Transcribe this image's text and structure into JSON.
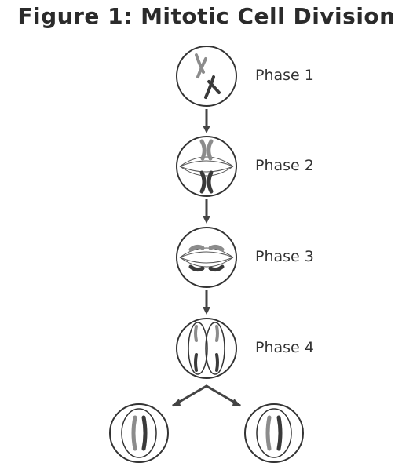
{
  "figure": {
    "title": "Figure 1: Mitotic Cell Division"
  },
  "phases": [
    {
      "label": "Phase 1"
    },
    {
      "label": "Phase 2"
    },
    {
      "label": "Phase 3"
    },
    {
      "label": "Phase 4"
    }
  ],
  "colors": {
    "outline": "#333333",
    "chromosome_light": "#8c8c8c",
    "chromosome_dark": "#3a3a3a",
    "arrow": "#444444"
  }
}
